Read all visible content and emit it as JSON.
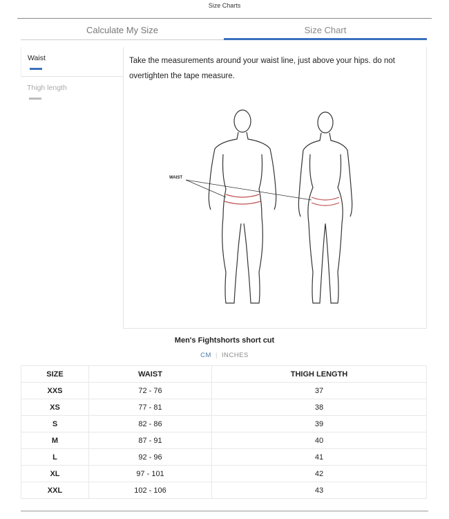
{
  "title": "Size Charts",
  "tabs": [
    {
      "label": "Calculate My Size",
      "active": false
    },
    {
      "label": "Size Chart",
      "active": true
    }
  ],
  "sidebar": {
    "items": [
      {
        "label": "Waist",
        "active": true
      },
      {
        "label": "Thigh length",
        "active": false
      }
    ]
  },
  "description": "Take the measurements around your waist line, just above your hips. do not overtighten the tape measure.",
  "illustration": {
    "label": "WAIST"
  },
  "product_title": "Men's Fightshorts short cut",
  "units": {
    "cm": "CM",
    "inches": "INCHES",
    "selected": "CM"
  },
  "table": {
    "headers": [
      "SIZE",
      "WAIST",
      "THIGH LENGTH"
    ],
    "rows": [
      [
        "XXS",
        "72 - 76",
        "37"
      ],
      [
        "XS",
        "77 - 81",
        "38"
      ],
      [
        "S",
        "82 - 86",
        "39"
      ],
      [
        "M",
        "87 - 91",
        "40"
      ],
      [
        "L",
        "92 - 96",
        "41"
      ],
      [
        "XL",
        "97 - 101",
        "42"
      ],
      [
        "XXL",
        "102 - 106",
        "43"
      ]
    ]
  },
  "colors": {
    "accent": "#3a6fbf",
    "units_active": "#4a7aa5"
  }
}
